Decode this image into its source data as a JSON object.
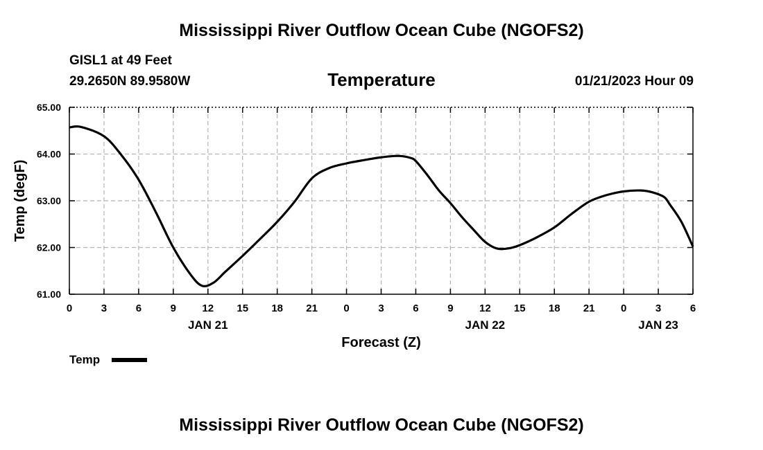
{
  "page": {
    "title": "Mississippi River Outflow Ocean Cube (NGOFS2)",
    "footer_title": "Mississippi River Outflow Ocean Cube (NGOFS2)",
    "station_line": "GISL1 at 49 Feet",
    "coords_line": "29.2650N  89.9580W",
    "chart_title": "Temperature",
    "datetime": "01/21/2023 Hour 09"
  },
  "colors": {
    "line": "#000000",
    "grid": "#b4b4b4",
    "background": "#ffffff"
  },
  "chart_data": {
    "type": "line",
    "title": "Temperature",
    "xlabel": "Forecast (Z)",
    "ylabel": "Temp (degF)",
    "ylim": [
      61.0,
      65.0
    ],
    "yticks": [
      "61.00",
      "62.00",
      "63.00",
      "64.00",
      "65.00"
    ],
    "xlim": [
      0,
      54
    ],
    "x_tick_labels": [
      "0",
      "3",
      "6",
      "9",
      "12",
      "15",
      "18",
      "21",
      "0",
      "3",
      "6",
      "9",
      "12",
      "15",
      "18",
      "21",
      "0",
      "3",
      "6"
    ],
    "date_labels": [
      {
        "label": "JAN 21",
        "hour": 12
      },
      {
        "label": "JAN 22",
        "hour": 36
      },
      {
        "label": "JAN 23",
        "hour": 51
      }
    ],
    "grid": true,
    "legend": {
      "label": "Temp",
      "placement": "bottom-left"
    },
    "series": [
      {
        "name": "Temp",
        "x": [
          0,
          1,
          3,
          4.5,
          6,
          7.5,
          9,
          10.5,
          11.5,
          12.5,
          13.5,
          15,
          16.5,
          18,
          19.5,
          21,
          22.5,
          24,
          25.5,
          27,
          28.5,
          29.5,
          30,
          31,
          32,
          33,
          34,
          35,
          36,
          37,
          38,
          39,
          40.5,
          42,
          43.5,
          45,
          46.5,
          48,
          49.5,
          50.5,
          51.5,
          52,
          53,
          54
        ],
        "values": [
          64.57,
          64.58,
          64.38,
          63.98,
          63.45,
          62.75,
          62.0,
          61.42,
          61.18,
          61.25,
          61.48,
          61.82,
          62.18,
          62.55,
          62.98,
          63.48,
          63.7,
          63.8,
          63.87,
          63.93,
          63.96,
          63.92,
          63.85,
          63.55,
          63.22,
          62.95,
          62.65,
          62.38,
          62.12,
          61.98,
          61.98,
          62.05,
          62.22,
          62.43,
          62.72,
          62.98,
          63.12,
          63.2,
          63.22,
          63.18,
          63.08,
          62.92,
          62.55,
          62.02
        ]
      }
    ]
  }
}
